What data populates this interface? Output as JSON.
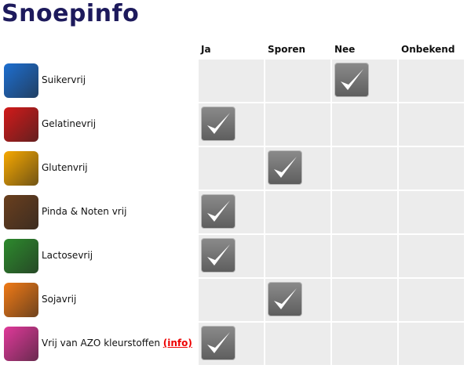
{
  "title": "Snoepinfo",
  "columns": [
    "Ja",
    "Sporen",
    "Nee",
    "Onbekend"
  ],
  "rows": [
    {
      "label": "Suikervrij",
      "icon": "sugar-cubes-icon",
      "color": "#1e6fd0",
      "checked": 2
    },
    {
      "label": "Gelatinevrij",
      "icon": "gelatin-icon",
      "color": "#d21a1a",
      "checked": 0
    },
    {
      "label": "Glutenvrij",
      "icon": "wheat-icon",
      "color": "#f6a800",
      "checked": 1
    },
    {
      "label": "Pinda & Noten vrij",
      "icon": "peanut-icon",
      "color": "#6a3f1e",
      "checked": 0
    },
    {
      "label": "Lactosevrij",
      "icon": "cow-icon",
      "color": "#2d8a2d",
      "checked": 0
    },
    {
      "label": "Sojavrij",
      "icon": "soybean-icon",
      "color": "#f07a16",
      "checked": 1
    },
    {
      "label": "Vrij van AZO kleurstoffen",
      "link": "(info)",
      "icon": "flask-icon",
      "color": "#e0399a",
      "checked": 0
    }
  ]
}
